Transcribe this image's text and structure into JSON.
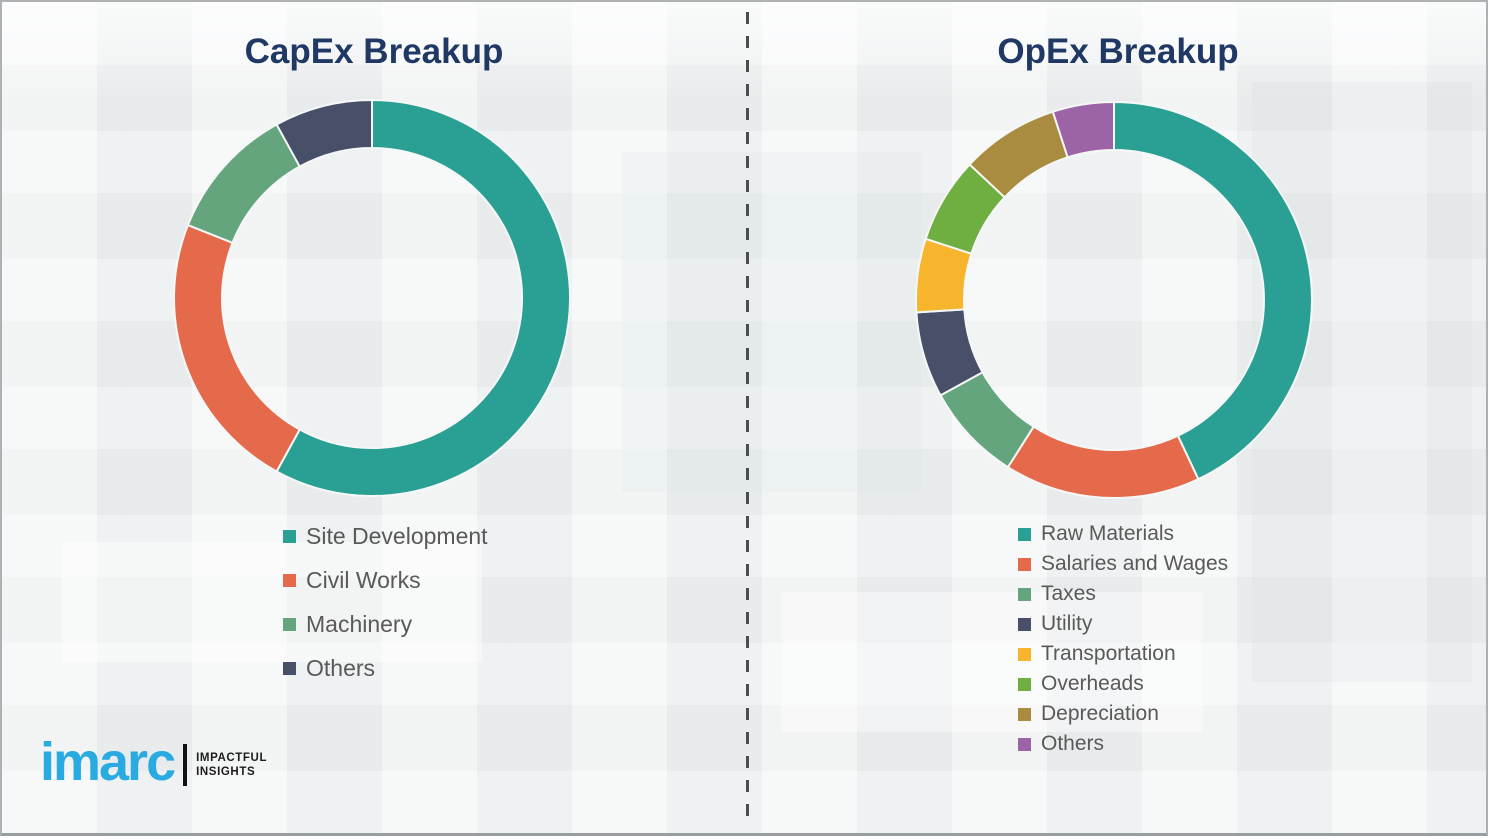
{
  "titles": {
    "capex": "CapEx Breakup",
    "opex": "OpEx Breakup"
  },
  "chart_data": [
    {
      "type": "pie",
      "subtype": "donut",
      "title": "CapEx Breakup",
      "labels": [
        "Site Development",
        "Civil Works",
        "Machinery",
        "Others"
      ],
      "values": [
        58,
        23,
        11,
        8
      ],
      "values_are_estimates": true,
      "colors": [
        "#2aa095",
        "#e5694b",
        "#64a57e",
        "#485069"
      ],
      "start_angle_deg": 0,
      "direction": "clockwise",
      "legend_position": "below-left"
    },
    {
      "type": "pie",
      "subtype": "donut",
      "title": "OpEx Breakup",
      "labels": [
        "Raw Materials",
        "Salaries and Wages",
        "Taxes",
        "Utility",
        "Transportation",
        "Overheads",
        "Depreciation",
        "Others"
      ],
      "values": [
        43,
        16,
        8,
        7,
        6,
        7,
        8,
        5
      ],
      "values_are_estimates": true,
      "colors": [
        "#2aa095",
        "#e5694b",
        "#64a57e",
        "#485069",
        "#f6b52c",
        "#6fae41",
        "#aa8c41",
        "#9c64a6"
      ],
      "start_angle_deg": 0,
      "direction": "clockwise",
      "legend_position": "below-left"
    }
  ],
  "logo": {
    "brand": "imarc",
    "tagline_1": "IMPACTFUL",
    "tagline_2": "INSIGHTS",
    "brand_color": "#29abe2"
  },
  "style_colors": {
    "title_navy": "#1f3864",
    "legend_text": "#595959",
    "divider_gray": "#4d4d4d",
    "background": "#eff1f2"
  }
}
